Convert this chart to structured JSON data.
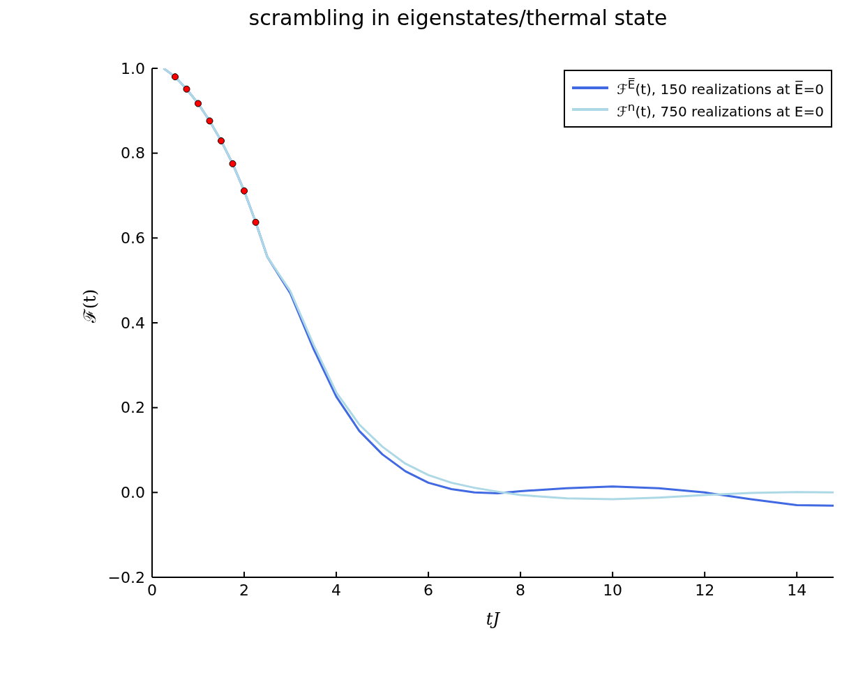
{
  "chart_data": {
    "type": "line",
    "title": "scrambling in eigenstates/thermal state",
    "xlabel": "tJ",
    "ylabel": "ℱ(t)",
    "xlim": [
      0,
      14.8
    ],
    "xticks": [
      0,
      2,
      4,
      6,
      8,
      10,
      12,
      14
    ],
    "ylim": [
      -0.2,
      1.0
    ],
    "yticks": [
      {
        "value": -0.2,
        "label": "−0.2"
      },
      {
        "value": 0,
        "label": "0.0"
      },
      {
        "value": 0.2,
        "label": "0.2"
      },
      {
        "value": 0.4,
        "label": "0.4"
      },
      {
        "value": 0.6,
        "label": "0.6"
      },
      {
        "value": 0.8,
        "label": "0.8"
      },
      {
        "value": 1.0,
        "label": "1.0"
      }
    ],
    "grid": false,
    "legend": "top right",
    "line_style": "solid",
    "series": [
      {
        "name": "ℱ$^{E̅}$(t), 150 realizations at E̅=0",
        "color": "#4169e1",
        "marker": "none",
        "x": [
          0.25,
          0.5,
          0.75,
          1,
          1.25,
          1.5,
          1.75,
          2,
          2.25,
          2.5,
          3,
          3.5,
          4,
          4.5,
          5,
          5.5,
          6,
          6.5,
          7,
          7.5,
          8,
          9,
          10,
          11,
          12,
          13,
          14,
          14.8
        ],
        "values": [
          1.0,
          0.98,
          0.951,
          0.917,
          0.876,
          0.829,
          0.775,
          0.711,
          0.637,
          0.556,
          0.47,
          0.34,
          0.226,
          0.145,
          0.09,
          0.05,
          0.023,
          0.008,
          0.0,
          -0.002,
          0.003,
          0.01,
          0.014,
          0.01,
          0.0,
          -0.016,
          -0.03,
          -0.031
        ]
      },
      {
        "name": "ℱ$^{n}$(t), 750 realizations at E=0",
        "color": "#add8e6",
        "marker": "none",
        "x": [
          0.25,
          0.5,
          0.75,
          1,
          1.25,
          1.5,
          1.75,
          2,
          2.25,
          2.5,
          3,
          3.5,
          4,
          4.5,
          5,
          5.5,
          6,
          6.5,
          7,
          7.5,
          8,
          9,
          10,
          11,
          12,
          13,
          14,
          14.8
        ],
        "values": [
          1.0,
          0.98,
          0.951,
          0.917,
          0.876,
          0.829,
          0.775,
          0.711,
          0.637,
          0.556,
          0.475,
          0.35,
          0.236,
          0.16,
          0.108,
          0.068,
          0.041,
          0.023,
          0.011,
          0.002,
          -0.006,
          -0.014,
          -0.016,
          -0.012,
          -0.006,
          -0.001,
          0.001,
          0.0
        ]
      },
      {
        "color": "#ff0000",
        "type": "scatter",
        "marker": "circle",
        "x": [
          0.5,
          0.75,
          1,
          1.25,
          1.5,
          1.75,
          2,
          2.25
        ],
        "values": [
          0.98,
          0.951,
          0.917,
          0.876,
          0.829,
          0.775,
          0.711,
          0.637
        ]
      }
    ]
  }
}
